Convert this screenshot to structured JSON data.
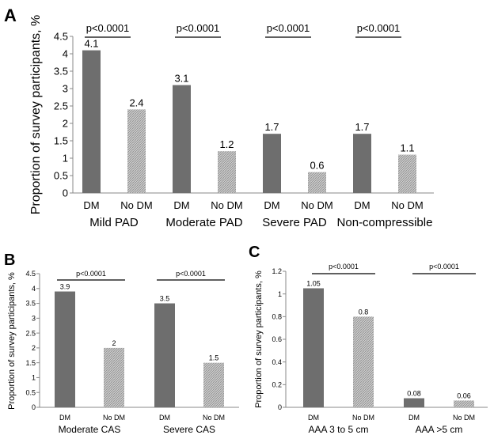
{
  "chart_data": [
    {
      "panel": "A",
      "type": "bar",
      "ylabel": "Proportion of survey participants, %",
      "ylim": [
        0,
        4.5
      ],
      "yticks": [
        "0",
        "0.5",
        "1",
        "1.5",
        "2",
        "2.5",
        "3",
        "3.5",
        "4",
        "4.5"
      ],
      "groups": [
        "Mild PAD",
        "Moderate PAD",
        "Severe PAD",
        "Non-compressible"
      ],
      "categories": [
        "DM",
        "No DM"
      ],
      "series": [
        {
          "name": "DM",
          "values": [
            4.1,
            3.1,
            1.7,
            1.7
          ]
        },
        {
          "name": "No DM",
          "values": [
            2.4,
            1.2,
            0.6,
            1.1
          ]
        }
      ],
      "labels": [
        [
          "4.1",
          "2.4"
        ],
        [
          "3.1",
          "1.2"
        ],
        [
          "1.7",
          "0.6"
        ],
        [
          "1.7",
          "1.1"
        ]
      ],
      "annotations": [
        "p<0.0001",
        "p<0.0001",
        "p<0.0001",
        "p<0.0001"
      ],
      "grid": false
    },
    {
      "panel": "B",
      "type": "bar",
      "ylabel": "Proportion of survey participants, %",
      "ylim": [
        0,
        4.5
      ],
      "yticks": [
        "0",
        "0.5",
        "1",
        "1.5",
        "2",
        "2.5",
        "3",
        "3.5",
        "4",
        "4.5"
      ],
      "groups": [
        "Moderate CAS",
        "Severe CAS"
      ],
      "categories": [
        "DM",
        "No DM"
      ],
      "series": [
        {
          "name": "DM",
          "values": [
            3.9,
            3.5
          ]
        },
        {
          "name": "No DM",
          "values": [
            2,
            1.5
          ]
        }
      ],
      "labels": [
        [
          "3.9",
          "2"
        ],
        [
          "3.5",
          "1.5"
        ]
      ],
      "annotations": [
        "p<0.0001",
        "p<0.0001"
      ],
      "grid": false
    },
    {
      "panel": "C",
      "type": "bar",
      "ylabel": "Proportion of survey participants, %",
      "ylim": [
        0,
        1.2
      ],
      "yticks": [
        "0",
        "0.2",
        "0.4",
        "0.6",
        "0.8",
        "1",
        "1.2"
      ],
      "groups": [
        "AAA 3 to 5 cm",
        "AAA >5 cm"
      ],
      "categories": [
        "DM",
        "No DM"
      ],
      "series": [
        {
          "name": "DM",
          "values": [
            1.05,
            0.08
          ]
        },
        {
          "name": "No DM",
          "values": [
            0.8,
            0.06
          ]
        }
      ],
      "labels": [
        [
          "1.05",
          "0.8"
        ],
        [
          "0.08",
          "0.06"
        ]
      ],
      "annotations": [
        "p<0.0001",
        "p<0.0001"
      ],
      "grid": false
    }
  ],
  "colors": {
    "dm_bar": "#6e6e6e",
    "nodm_bar": "#cfcfcf",
    "nodm_hatch": "#8a8a8a",
    "axis": "#888888"
  }
}
